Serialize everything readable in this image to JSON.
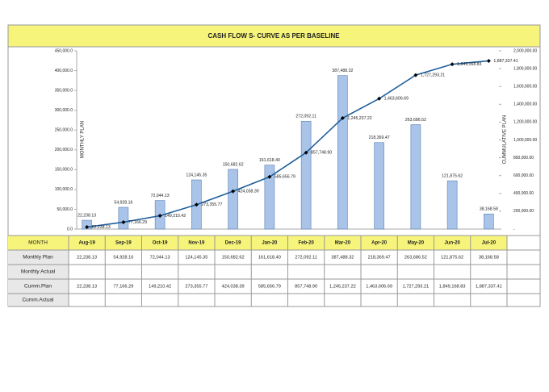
{
  "chart_data": {
    "type": "bar",
    "title": "CASH FLOW S- CURVE AS PER BASELINE",
    "y_label": "MONTHLY PLAN",
    "y2_label": "CUMMULATIVE PLAN",
    "categories": [
      "Aug-19",
      "Sep-19",
      "Oct-19",
      "Nov-19",
      "Dec-19",
      "Jan-20",
      "Feb-20",
      "Mar-20",
      "Apr-20",
      "May-20",
      "Jun-20",
      "Jul-20"
    ],
    "series": [
      {
        "name": "Monthly Plan",
        "type": "bar",
        "color": "#a9c4e8",
        "values": [
          22238.13,
          54928.16,
          72044.13,
          124145.35,
          150682.62,
          161618.4,
          272092.11,
          387488.32,
          218369.47,
          263686.52,
          121875.62,
          38168.58
        ],
        "value_labels": [
          "22,238.13",
          "54,928.16",
          "72,044.13",
          "124,145.35",
          "150,682.62",
          "161,618.40",
          "272,092.11",
          "387,488.32",
          "218,369.47",
          "263,686.52",
          "121,875.62",
          "38,168.58"
        ]
      },
      {
        "name": "Cumm.Plan",
        "type": "line",
        "axis": "y2",
        "color": "#1f5f9c",
        "values": [
          22238.13,
          77166.29,
          149210.42,
          273355.77,
          424038.39,
          585656.79,
          857748.9,
          1245237.22,
          1463606.69,
          1727293.21,
          1849168.83,
          1887337.41
        ],
        "value_labels": [
          "22,238.13",
          "77,166.29",
          "149,210.42",
          "273,355.77",
          "424,038.39",
          "585,656.79",
          "857,748.90",
          "1,245,237.22",
          "1,463,606.69",
          "1,727,293.21",
          "1,849,168.83",
          "1,887,337.41"
        ]
      }
    ],
    "ylim": [
      0,
      450000
    ],
    "yticks": [
      {
        "value": 0,
        "label": "0.0"
      },
      {
        "value": 50000,
        "label": "50,000.0"
      },
      {
        "value": 100000,
        "label": "100,000.0"
      },
      {
        "value": 150000,
        "label": "150,000.0"
      },
      {
        "value": 200000,
        "label": "200,000.0"
      },
      {
        "value": 250000,
        "label": "250,000.0"
      },
      {
        "value": 300000,
        "label": "300,000.0"
      },
      {
        "value": 350000,
        "label": "350,000.0"
      },
      {
        "value": 400000,
        "label": "400,000.0"
      },
      {
        "value": 450000,
        "label": "450,000.0"
      }
    ],
    "y2lim": [
      0,
      2000000
    ],
    "y2ticks": [
      {
        "value": 0,
        "label": "-"
      },
      {
        "value": 200000,
        "label": "200,000.00"
      },
      {
        "value": 400000,
        "label": "400,000.00"
      },
      {
        "value": 600000,
        "label": "600,000.00"
      },
      {
        "value": 800000,
        "label": "800,000.00"
      },
      {
        "value": 1000000,
        "label": "1,000,000.00"
      },
      {
        "value": 1200000,
        "label": "1,200,000.00"
      },
      {
        "value": 1400000,
        "label": "1,400,000.00"
      },
      {
        "value": 1600000,
        "label": "1,600,000.00"
      },
      {
        "value": 1800000,
        "label": "1,800,000.00"
      },
      {
        "value": 2000000,
        "label": "2,000,000.00"
      }
    ]
  },
  "table": {
    "month_header": "MONTH",
    "monthly_actual": "Monthly Actual",
    "cumm_actual": "Cumm.Actual"
  }
}
